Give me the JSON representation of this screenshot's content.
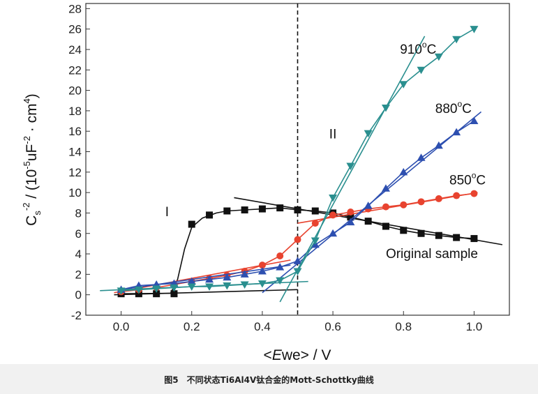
{
  "chart_data": {
    "type": "line",
    "xlabel_parts": {
      "open": "<",
      "italic": "E",
      "rest": "we> / V"
    },
    "ylabel_parts": {
      "c": "C",
      "sub": "s",
      "sup_neg2": "-2",
      "mid1": " / (10",
      "sup_neg5": "-5",
      "mid2": "uF",
      "mid3": " · cm",
      "sup4": "4",
      "close": ")"
    },
    "xlim": [
      -0.1,
      1.1
    ],
    "ylim": [
      -2,
      28.5
    ],
    "xticks": [
      {
        "value": 0.0,
        "label": "0.0"
      },
      {
        "value": 0.2,
        "label": "0.2"
      },
      {
        "value": 0.4,
        "label": "0.4"
      },
      {
        "value": 0.6,
        "label": "0.6"
      },
      {
        "value": 0.8,
        "label": "0.8"
      },
      {
        "value": 1.0,
        "label": "1.0"
      }
    ],
    "yticks": [
      {
        "value": -2,
        "label": "-2"
      },
      {
        "value": 0,
        "label": "0"
      },
      {
        "value": 2,
        "label": "2"
      },
      {
        "value": 4,
        "label": "4"
      },
      {
        "value": 6,
        "label": "6"
      },
      {
        "value": 8,
        "label": "8"
      },
      {
        "value": 10,
        "label": "10"
      },
      {
        "value": 12,
        "label": "12"
      },
      {
        "value": 14,
        "label": "14"
      },
      {
        "value": 16,
        "label": "16"
      },
      {
        "value": 18,
        "label": "18"
      },
      {
        "value": 20,
        "label": "20"
      },
      {
        "value": 22,
        "label": "22"
      },
      {
        "value": 24,
        "label": "24"
      },
      {
        "value": 26,
        "label": "26"
      },
      {
        "value": 28,
        "label": "28"
      }
    ],
    "divider_x": 0.5,
    "region_labels": [
      {
        "text": "I",
        "x": 0.13,
        "y": 7.7
      },
      {
        "text": "II",
        "x": 0.6,
        "y": 15.3
      }
    ],
    "series": [
      {
        "name": "Original sample",
        "color": "#111111",
        "marker": "square",
        "label_pos": {
          "x": 0.75,
          "y": 3.6
        },
        "x": [
          0.0,
          0.05,
          0.1,
          0.15,
          0.2,
          0.25,
          0.3,
          0.35,
          0.4,
          0.45,
          0.5,
          0.55,
          0.6,
          0.65,
          0.7,
          0.75,
          0.8,
          0.85,
          0.9,
          0.95,
          1.0
        ],
        "y": [
          0.1,
          0.1,
          0.1,
          0.1,
          6.9,
          7.8,
          8.2,
          8.3,
          8.4,
          8.5,
          8.3,
          8.2,
          8.0,
          7.6,
          7.2,
          6.7,
          6.3,
          6.0,
          5.8,
          5.6,
          5.5
        ],
        "curve": [
          [
            0.0,
            0.1
          ],
          [
            0.14,
            0.15
          ],
          [
            0.16,
            1.5
          ],
          [
            0.18,
            4.5
          ],
          [
            0.2,
            6.6
          ],
          [
            0.23,
            7.5
          ],
          [
            0.27,
            8.0
          ],
          [
            0.3,
            8.2
          ],
          [
            0.35,
            8.3
          ],
          [
            0.4,
            8.4
          ],
          [
            0.45,
            8.5
          ],
          [
            0.5,
            8.3
          ],
          [
            0.55,
            8.2
          ],
          [
            0.6,
            8.0
          ],
          [
            0.65,
            7.6
          ],
          [
            0.7,
            7.2
          ],
          [
            0.75,
            6.7
          ],
          [
            0.8,
            6.3
          ],
          [
            0.85,
            6.0
          ],
          [
            0.9,
            5.8
          ],
          [
            0.95,
            5.6
          ],
          [
            1.0,
            5.5
          ]
        ],
        "fits": [
          [
            [
              -0.02,
              0.0
            ],
            [
              0.5,
              0.5
            ]
          ],
          [
            [
              0.32,
              9.5
            ],
            [
              1.08,
              4.9
            ]
          ]
        ]
      },
      {
        "name": "850°C",
        "label_text": "850",
        "label_sup": "o",
        "label_unit": "C",
        "label_pos": {
          "x": 0.93,
          "y": 10.8
        },
        "color": "#e8432f",
        "marker": "circle",
        "x": [
          0.0,
          0.05,
          0.1,
          0.15,
          0.2,
          0.25,
          0.3,
          0.35,
          0.4,
          0.45,
          0.5,
          0.55,
          0.6,
          0.65,
          0.7,
          0.75,
          0.8,
          0.85,
          0.9,
          0.95,
          1.0
        ],
        "y": [
          0.3,
          0.5,
          0.7,
          1.0,
          1.3,
          1.6,
          1.9,
          2.3,
          2.9,
          3.8,
          5.4,
          7.0,
          7.8,
          8.1,
          8.4,
          8.6,
          8.8,
          9.1,
          9.4,
          9.7,
          9.9
        ],
        "curve": [
          [
            0.0,
            0.3
          ],
          [
            0.05,
            0.5
          ],
          [
            0.1,
            0.7
          ],
          [
            0.15,
            1.0
          ],
          [
            0.2,
            1.3
          ],
          [
            0.25,
            1.6
          ],
          [
            0.3,
            1.9
          ],
          [
            0.35,
            2.3
          ],
          [
            0.4,
            2.9
          ],
          [
            0.45,
            3.8
          ],
          [
            0.5,
            5.4
          ],
          [
            0.55,
            7.0
          ],
          [
            0.6,
            7.8
          ],
          [
            0.65,
            8.1
          ],
          [
            0.7,
            8.4
          ],
          [
            0.75,
            8.6
          ],
          [
            0.8,
            8.8
          ],
          [
            0.85,
            9.1
          ],
          [
            0.9,
            9.4
          ],
          [
            0.95,
            9.7
          ],
          [
            1.0,
            9.9
          ]
        ],
        "fits": [
          [
            [
              -0.02,
              0.2
            ],
            [
              0.48,
              3.4
            ]
          ],
          [
            [
              0.5,
              7.0
            ],
            [
              1.01,
              10.0
            ]
          ]
        ]
      },
      {
        "name": "880°C",
        "label_text": "880",
        "label_sup": "o",
        "label_unit": "C",
        "label_pos": {
          "x": 0.89,
          "y": 17.8
        },
        "color": "#2d4fb0",
        "marker": "triangle-up",
        "x": [
          0.0,
          0.05,
          0.1,
          0.15,
          0.2,
          0.25,
          0.3,
          0.35,
          0.4,
          0.45,
          0.5,
          0.55,
          0.6,
          0.65,
          0.7,
          0.75,
          0.8,
          0.85,
          0.9,
          0.95,
          1.0
        ],
        "y": [
          0.5,
          0.9,
          1.0,
          1.1,
          1.3,
          1.5,
          1.7,
          2.0,
          2.3,
          2.7,
          3.3,
          4.9,
          6.0,
          7.1,
          8.7,
          10.4,
          12.0,
          13.4,
          14.6,
          15.9,
          17.0
        ],
        "curve": [
          [
            0.0,
            0.5
          ],
          [
            0.05,
            0.9
          ],
          [
            0.1,
            1.0
          ],
          [
            0.15,
            1.1
          ],
          [
            0.2,
            1.3
          ],
          [
            0.25,
            1.5
          ],
          [
            0.3,
            1.7
          ],
          [
            0.35,
            2.0
          ],
          [
            0.4,
            2.3
          ],
          [
            0.45,
            2.7
          ],
          [
            0.5,
            3.3
          ],
          [
            0.55,
            4.9
          ],
          [
            0.6,
            6.0
          ],
          [
            0.65,
            7.1
          ],
          [
            0.7,
            8.7
          ],
          [
            0.75,
            10.4
          ],
          [
            0.8,
            12.0
          ],
          [
            0.85,
            13.4
          ],
          [
            0.9,
            14.6
          ],
          [
            0.95,
            15.9
          ],
          [
            1.0,
            17.0
          ]
        ],
        "fits": [
          [
            [
              0.0,
              0.5
            ],
            [
              0.48,
              2.9
            ]
          ],
          [
            [
              0.4,
              0.2
            ],
            [
              1.02,
              17.9
            ]
          ]
        ]
      },
      {
        "name": "910°C",
        "label_text": "910",
        "label_sup": "o",
        "label_unit": "C",
        "label_pos": {
          "x": 0.79,
          "y": 23.6
        },
        "color": "#2a8f8f",
        "marker": "triangle-down",
        "x": [
          0.0,
          0.05,
          0.1,
          0.15,
          0.2,
          0.25,
          0.3,
          0.35,
          0.4,
          0.45,
          0.5,
          0.55,
          0.6,
          0.65,
          0.7,
          0.75,
          0.8,
          0.85,
          0.9,
          0.95,
          1.0
        ],
        "y": [
          0.4,
          0.5,
          0.6,
          0.7,
          0.8,
          0.8,
          0.9,
          1.0,
          1.1,
          1.4,
          2.3,
          5.3,
          9.5,
          12.6,
          15.8,
          18.3,
          20.6,
          22.0,
          23.3,
          25.0,
          26.0
        ],
        "curve": [
          [
            0.0,
            0.4
          ],
          [
            0.05,
            0.5
          ],
          [
            0.1,
            0.6
          ],
          [
            0.15,
            0.7
          ],
          [
            0.2,
            0.8
          ],
          [
            0.25,
            0.8
          ],
          [
            0.3,
            0.9
          ],
          [
            0.35,
            1.0
          ],
          [
            0.4,
            1.1
          ],
          [
            0.45,
            1.4
          ],
          [
            0.5,
            2.3
          ],
          [
            0.55,
            5.3
          ],
          [
            0.6,
            9.5
          ],
          [
            0.65,
            12.6
          ],
          [
            0.7,
            15.8
          ],
          [
            0.75,
            18.3
          ],
          [
            0.8,
            20.6
          ],
          [
            0.85,
            22.0
          ],
          [
            0.9,
            23.3
          ],
          [
            0.95,
            25.0
          ],
          [
            1.0,
            26.0
          ]
        ],
        "fits": [
          [
            [
              -0.06,
              0.4
            ],
            [
              0.53,
              1.3
            ]
          ],
          [
            [
              0.45,
              -0.7
            ],
            [
              0.86,
              25.3
            ]
          ]
        ]
      }
    ]
  },
  "caption": "图5　不同状态Ti6Al4V钛合金的Mott-Schottky曲线"
}
